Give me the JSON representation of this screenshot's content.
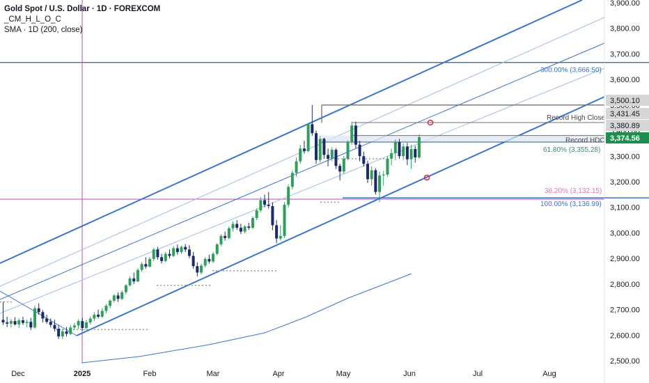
{
  "legend": {
    "title": "Gold Spot / U.S. Dollar · 1D · FOREXCOM",
    "indicator1": "_CM_H_L_O_C",
    "indicator2": "SMA · 1D (200, close)"
  },
  "colors": {
    "up": "#2e9e5b",
    "down": "#1b2a6b",
    "channel": "#3a74c9",
    "channel_light": "#9fbbe6",
    "level_line": "#2a5d8f",
    "magenta": "#c04ab8",
    "grey_line": "#707070",
    "price_tag": "#1e8e4e",
    "fib_green": "#3a8a6a",
    "fib_pink": "#d07ab8",
    "fib_blue": "#3a74c9"
  },
  "chart_data": {
    "type": "candlestick",
    "symbol": "Gold Spot / U.S. Dollar",
    "interval": "1D",
    "exchange": "FOREXCOM",
    "x_ticks": [
      "Dec",
      "2025",
      "Feb",
      "Mar",
      "Apr",
      "May",
      "Jun",
      "Jul",
      "Aug"
    ],
    "y_ticks": [
      "3,900.00",
      "3,800.00",
      "3,700.00",
      "3,600.00",
      "3,500.00",
      "3,400.00",
      "3,300.00",
      "3,200.00",
      "3,100.00",
      "3,000.00",
      "2,900.00",
      "2,800.00",
      "2,700.00",
      "2,600.00",
      "2,500.00"
    ],
    "ylim": [
      2500,
      3900
    ],
    "price_tags": [
      {
        "label": "3,500.10",
        "value": 3500.1
      },
      {
        "label": "3,431.45",
        "value": 3431.45
      },
      {
        "label": "3,380.89",
        "value": 3380.89
      },
      {
        "label": "3,374.56",
        "value": 3374.56,
        "current": true
      }
    ],
    "annotations": [
      {
        "text": "300.00% (3,666.50)",
        "value": 3666.5
      },
      {
        "text": "Record High Close",
        "value": 3431.45
      },
      {
        "text": "Record HDC",
        "value": 3380.89
      },
      {
        "text": "61.80% (3,355.28)",
        "value": 3355.28
      },
      {
        "text": "38.20% (3,132.15)",
        "value": 3132.15
      },
      {
        "text": "100.00% (3,136.99)",
        "value": 3136.99
      }
    ],
    "candles": [
      {
        "o": 2660,
        "h": 2730,
        "l": 2640,
        "c": 2650
      },
      {
        "o": 2650,
        "h": 2672,
        "l": 2632,
        "c": 2645
      },
      {
        "o": 2645,
        "h": 2662,
        "l": 2630,
        "c": 2655
      },
      {
        "o": 2655,
        "h": 2670,
        "l": 2638,
        "c": 2642
      },
      {
        "o": 2642,
        "h": 2666,
        "l": 2628,
        "c": 2658
      },
      {
        "o": 2658,
        "h": 2672,
        "l": 2640,
        "c": 2648
      },
      {
        "o": 2648,
        "h": 2660,
        "l": 2630,
        "c": 2652
      },
      {
        "o": 2652,
        "h": 2668,
        "l": 2620,
        "c": 2630
      },
      {
        "o": 2630,
        "h": 2715,
        "l": 2625,
        "c": 2705
      },
      {
        "o": 2705,
        "h": 2725,
        "l": 2680,
        "c": 2690
      },
      {
        "o": 2690,
        "h": 2698,
        "l": 2650,
        "c": 2665
      },
      {
        "o": 2665,
        "h": 2680,
        "l": 2645,
        "c": 2652
      },
      {
        "o": 2652,
        "h": 2665,
        "l": 2630,
        "c": 2640
      },
      {
        "o": 2640,
        "h": 2660,
        "l": 2615,
        "c": 2625
      },
      {
        "o": 2625,
        "h": 2640,
        "l": 2585,
        "c": 2595
      },
      {
        "o": 2595,
        "h": 2625,
        "l": 2585,
        "c": 2615
      },
      {
        "o": 2615,
        "h": 2632,
        "l": 2595,
        "c": 2605
      },
      {
        "o": 2605,
        "h": 2640,
        "l": 2600,
        "c": 2630
      },
      {
        "o": 2630,
        "h": 2648,
        "l": 2620,
        "c": 2638
      },
      {
        "o": 2638,
        "h": 2662,
        "l": 2625,
        "c": 2655
      },
      {
        "o": 2655,
        "h": 2668,
        "l": 2618,
        "c": 2628
      },
      {
        "o": 2628,
        "h": 2660,
        "l": 2620,
        "c": 2650
      },
      {
        "o": 2650,
        "h": 2672,
        "l": 2642,
        "c": 2665
      },
      {
        "o": 2665,
        "h": 2690,
        "l": 2655,
        "c": 2680
      },
      {
        "o": 2680,
        "h": 2700,
        "l": 2665,
        "c": 2672
      },
      {
        "o": 2672,
        "h": 2705,
        "l": 2668,
        "c": 2695
      },
      {
        "o": 2695,
        "h": 2722,
        "l": 2685,
        "c": 2715
      },
      {
        "o": 2715,
        "h": 2740,
        "l": 2705,
        "c": 2735
      },
      {
        "o": 2735,
        "h": 2760,
        "l": 2728,
        "c": 2755
      },
      {
        "o": 2755,
        "h": 2768,
        "l": 2730,
        "c": 2742
      },
      {
        "o": 2742,
        "h": 2775,
        "l": 2738,
        "c": 2768
      },
      {
        "o": 2768,
        "h": 2800,
        "l": 2760,
        "c": 2795
      },
      {
        "o": 2795,
        "h": 2830,
        "l": 2790,
        "c": 2822
      },
      {
        "o": 2822,
        "h": 2845,
        "l": 2800,
        "c": 2810
      },
      {
        "o": 2810,
        "h": 2862,
        "l": 2808,
        "c": 2855
      },
      {
        "o": 2855,
        "h": 2885,
        "l": 2848,
        "c": 2878
      },
      {
        "o": 2878,
        "h": 2905,
        "l": 2860,
        "c": 2868
      },
      {
        "o": 2868,
        "h": 2905,
        "l": 2865,
        "c": 2898
      },
      {
        "o": 2898,
        "h": 2942,
        "l": 2890,
        "c": 2935
      },
      {
        "o": 2935,
        "h": 2945,
        "l": 2895,
        "c": 2905
      },
      {
        "o": 2905,
        "h": 2918,
        "l": 2880,
        "c": 2890
      },
      {
        "o": 2890,
        "h": 2925,
        "l": 2885,
        "c": 2918
      },
      {
        "o": 2918,
        "h": 2935,
        "l": 2900,
        "c": 2910
      },
      {
        "o": 2910,
        "h": 2948,
        "l": 2905,
        "c": 2940
      },
      {
        "o": 2940,
        "h": 2955,
        "l": 2915,
        "c": 2925
      },
      {
        "o": 2925,
        "h": 2950,
        "l": 2918,
        "c": 2945
      },
      {
        "o": 2945,
        "h": 2956,
        "l": 2925,
        "c": 2935
      },
      {
        "o": 2935,
        "h": 2952,
        "l": 2900,
        "c": 2910
      },
      {
        "o": 2910,
        "h": 2925,
        "l": 2860,
        "c": 2870
      },
      {
        "o": 2870,
        "h": 2885,
        "l": 2830,
        "c": 2845
      },
      {
        "o": 2845,
        "h": 2880,
        "l": 2838,
        "c": 2872
      },
      {
        "o": 2872,
        "h": 2905,
        "l": 2865,
        "c": 2898
      },
      {
        "o": 2898,
        "h": 2915,
        "l": 2880,
        "c": 2888
      },
      {
        "o": 2888,
        "h": 2925,
        "l": 2882,
        "c": 2918
      },
      {
        "o": 2918,
        "h": 2960,
        "l": 2912,
        "c": 2955
      },
      {
        "o": 2955,
        "h": 2995,
        "l": 2948,
        "c": 2988
      },
      {
        "o": 2988,
        "h": 3005,
        "l": 2970,
        "c": 2980
      },
      {
        "o": 2980,
        "h": 3025,
        "l": 2975,
        "c": 3018
      },
      {
        "o": 3018,
        "h": 3045,
        "l": 3005,
        "c": 3035
      },
      {
        "o": 3035,
        "h": 3050,
        "l": 3012,
        "c": 3020
      },
      {
        "o": 3020,
        "h": 3035,
        "l": 2995,
        "c": 3005
      },
      {
        "o": 3005,
        "h": 3030,
        "l": 2998,
        "c": 3025
      },
      {
        "o": 3025,
        "h": 3040,
        "l": 3012,
        "c": 3020
      },
      {
        "o": 3020,
        "h": 3065,
        "l": 3015,
        "c": 3058
      },
      {
        "o": 3058,
        "h": 3095,
        "l": 3050,
        "c": 3088
      },
      {
        "o": 3088,
        "h": 3140,
        "l": 3080,
        "c": 3128
      },
      {
        "o": 3128,
        "h": 3150,
        "l": 3100,
        "c": 3110
      },
      {
        "o": 3110,
        "h": 3160,
        "l": 3095,
        "c": 3105
      },
      {
        "o": 3105,
        "h": 3120,
        "l": 3010,
        "c": 3030
      },
      {
        "o": 3030,
        "h": 3050,
        "l": 2960,
        "c": 2978
      },
      {
        "o": 2978,
        "h": 3030,
        "l": 2970,
        "c": 2988
      },
      {
        "o": 2988,
        "h": 3120,
        "l": 2980,
        "c": 3110
      },
      {
        "o": 3110,
        "h": 3190,
        "l": 3100,
        "c": 3180
      },
      {
        "o": 3180,
        "h": 3245,
        "l": 3170,
        "c": 3235
      },
      {
        "o": 3235,
        "h": 3295,
        "l": 3220,
        "c": 3280
      },
      {
        "o": 3280,
        "h": 3345,
        "l": 3270,
        "c": 3330
      },
      {
        "o": 3330,
        "h": 3360,
        "l": 3310,
        "c": 3320
      },
      {
        "o": 3320,
        "h": 3430,
        "l": 3315,
        "c": 3425
      },
      {
        "o": 3425,
        "h": 3500,
        "l": 3380,
        "c": 3390
      },
      {
        "o": 3390,
        "h": 3400,
        "l": 3270,
        "c": 3285
      },
      {
        "o": 3285,
        "h": 3380,
        "l": 3275,
        "c": 3368
      },
      {
        "o": 3368,
        "h": 3372,
        "l": 3290,
        "c": 3305
      },
      {
        "o": 3305,
        "h": 3330,
        "l": 3260,
        "c": 3290
      },
      {
        "o": 3290,
        "h": 3335,
        "l": 3280,
        "c": 3325
      },
      {
        "o": 3325,
        "h": 3330,
        "l": 3250,
        "c": 3262
      },
      {
        "o": 3262,
        "h": 3270,
        "l": 3205,
        "c": 3240
      },
      {
        "o": 3240,
        "h": 3300,
        "l": 3230,
        "c": 3290
      },
      {
        "o": 3290,
        "h": 3362,
        "l": 3285,
        "c": 3355
      },
      {
        "o": 3355,
        "h": 3435,
        "l": 3345,
        "c": 3420
      },
      {
        "o": 3420,
        "h": 3435,
        "l": 3330,
        "c": 3345
      },
      {
        "o": 3345,
        "h": 3360,
        "l": 3280,
        "c": 3300
      },
      {
        "o": 3300,
        "h": 3318,
        "l": 3260,
        "c": 3270
      },
      {
        "o": 3270,
        "h": 3282,
        "l": 3195,
        "c": 3210
      },
      {
        "o": 3210,
        "h": 3260,
        "l": 3185,
        "c": 3245
      },
      {
        "o": 3245,
        "h": 3252,
        "l": 3150,
        "c": 3160
      },
      {
        "o": 3160,
        "h": 3240,
        "l": 3120,
        "c": 3225
      },
      {
        "o": 3225,
        "h": 3242,
        "l": 3185,
        "c": 3228
      },
      {
        "o": 3228,
        "h": 3300,
        "l": 3220,
        "c": 3290
      },
      {
        "o": 3290,
        "h": 3330,
        "l": 3265,
        "c": 3312
      },
      {
        "o": 3312,
        "h": 3365,
        "l": 3285,
        "c": 3355
      },
      {
        "o": 3355,
        "h": 3368,
        "l": 3290,
        "c": 3300
      },
      {
        "o": 3300,
        "h": 3350,
        "l": 3285,
        "c": 3338
      },
      {
        "o": 3338,
        "h": 3352,
        "l": 3265,
        "c": 3288
      },
      {
        "o": 3288,
        "h": 3345,
        "l": 3250,
        "c": 3328
      },
      {
        "o": 3328,
        "h": 3340,
        "l": 3275,
        "c": 3295
      },
      {
        "o": 3295,
        "h": 3385,
        "l": 3290,
        "c": 3374.56
      }
    ]
  }
}
